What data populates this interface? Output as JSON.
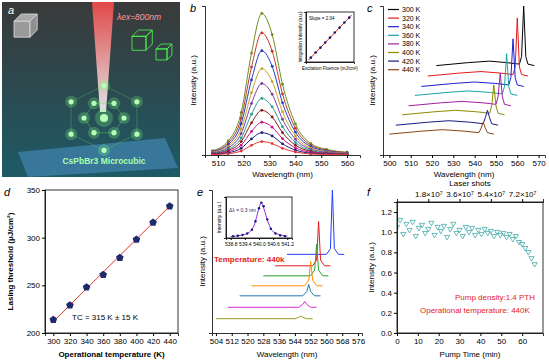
{
  "chart_data": [
    {
      "type": "illustration",
      "panel_label": "a",
      "labels": [
        "λex=800nm",
        "CsPbBr3 Microcubic"
      ]
    },
    {
      "type": "line",
      "panel_label": "b",
      "xlabel": "Wavelength (nm)",
      "ylabel": "Intensity (a.u.)",
      "xlim": [
        505,
        565
      ],
      "xticks": [
        510,
        520,
        530,
        540,
        550,
        560
      ],
      "ylim": [
        0,
        100
      ],
      "tick_labels": "x",
      "x": [
        508,
        514,
        519,
        523,
        527,
        531,
        535,
        540,
        546,
        552,
        560
      ],
      "series": [
        {
          "color": "#6b8e23",
          "marker": "circle",
          "values": [
            2.9,
            9.5,
            28.5,
            68.4,
            95,
            80.8,
            47.5,
            20.9,
            7.6,
            3.8,
            1.9
          ]
        },
        {
          "color": "#c0392b",
          "marker": "circle",
          "values": [
            2.5,
            8.2,
            24.6,
            59,
            82,
            69.7,
            41,
            18,
            6.6,
            3.3,
            1.6
          ]
        },
        {
          "color": "#1f3fbf",
          "marker": "circle",
          "values": [
            2.1,
            7,
            21,
            50.4,
            70,
            59.5,
            35,
            15.4,
            5.6,
            2.8,
            1.4
          ]
        },
        {
          "color": "#c9a227",
          "marker": "circle",
          "values": [
            1.7,
            5.8,
            17.4,
            41.8,
            58,
            49.3,
            29,
            12.8,
            4.6,
            2.3,
            1.2
          ]
        },
        {
          "color": "#7b3fa0",
          "marker": "circle",
          "values": [
            1.4,
            4.8,
            14.4,
            34.6,
            48,
            40.8,
            24,
            10.6,
            3.8,
            1.9,
            1
          ]
        },
        {
          "color": "#2a9d8f",
          "marker": "circle",
          "values": [
            1.1,
            3.8,
            11.4,
            27.4,
            38,
            32.3,
            19,
            8.4,
            3,
            1.5,
            0.8
          ]
        },
        {
          "color": "#8b1a1a",
          "marker": "circle",
          "values": [
            0.9,
            3,
            9,
            21.6,
            30,
            25.5,
            15,
            6.6,
            2.4,
            1.2,
            0.6
          ]
        },
        {
          "color": "#c71585",
          "marker": "circle",
          "values": [
            0.7,
            2.2,
            6.6,
            15.8,
            22,
            18.7,
            11,
            4.8,
            1.8,
            0.9,
            0.4
          ]
        },
        {
          "color": "#1a237e",
          "marker": "circle",
          "values": [
            0.5,
            1.5,
            4.5,
            10.8,
            15,
            12.8,
            7.5,
            3.3,
            1.2,
            0.6,
            0.3
          ]
        },
        {
          "color": "#e53935",
          "marker": "circle",
          "values": [
            0.3,
            0.9,
            2.7,
            6.5,
            9,
            7.7,
            4.5,
            2,
            0.7,
            0.4,
            0.2
          ]
        }
      ],
      "inset": {
        "type": "scatter",
        "xlabel": "Excitation Fluence (mJ/cm²)",
        "ylabel": "Integration Intensity (a.u.)",
        "xlim": [
          0,
          10
        ],
        "ylim": [
          0,
          11.5
        ],
        "tick_labels": false,
        "annotations": [
          {
            "text": "Slope = 2.04",
            "color": "#000000"
          }
        ],
        "series": [
          {
            "type": "line",
            "color": "#d62728",
            "x": [
              0.5,
              9.5
            ],
            "values": [
              0.4,
              10.8
            ]
          },
          {
            "type": "scatter",
            "marker": "circle",
            "color": "#1a1a6e",
            "x": [
              1,
              2,
              3,
              4,
              5,
              6,
              7,
              8,
              9
            ],
            "values": [
              1,
              2.2,
              3.3,
              4.5,
              5.6,
              6.8,
              7.9,
              9.1,
              10.2
            ]
          }
        ]
      }
    },
    {
      "type": "line",
      "panel_label": "c",
      "xlabel": "Wavelength (nm)",
      "ylabel": "Intensity (a.u.)",
      "xlim": [
        497,
        573
      ],
      "xticks": [
        500,
        510,
        520,
        530,
        540,
        550,
        560,
        570
      ],
      "ylim": [
        0,
        100
      ],
      "tick_labels": "x",
      "legend": "top-left",
      "series": [
        {
          "name": "300 K",
          "color": "#000000",
          "x": [
            522,
            537,
            547,
            555,
            561,
            562,
            563,
            564,
            565,
            568
          ],
          "values": [
            60,
            62,
            63,
            62,
            61,
            66,
            100,
            66,
            61,
            60
          ]
        },
        {
          "name": "320 K",
          "color": "#e41a1c",
          "x": [
            518,
            533,
            543,
            552,
            558,
            559,
            560,
            561,
            562,
            565
          ],
          "values": [
            53,
            55,
            56,
            55,
            54,
            59,
            92,
            59,
            54,
            53
          ]
        },
        {
          "name": "340 K",
          "color": "#1f1fd0",
          "x": [
            515,
            530,
            540,
            550,
            556,
            557,
            558,
            559,
            560,
            563
          ],
          "values": [
            46,
            48,
            49,
            48,
            47,
            52,
            78,
            52,
            47,
            46
          ]
        },
        {
          "name": "360 K",
          "color": "#1aa3a3",
          "x": [
            512,
            527,
            537,
            547,
            553,
            554,
            555,
            556,
            557,
            560
          ],
          "values": [
            40,
            42,
            43,
            42,
            41,
            46,
            68,
            46,
            41,
            40
          ]
        },
        {
          "name": "380 K",
          "color": "#a020a0",
          "x": [
            509,
            524,
            534,
            544,
            550,
            551,
            552,
            553,
            554,
            557
          ],
          "values": [
            33,
            35,
            36,
            35,
            34,
            39,
            55,
            39,
            34,
            33
          ]
        },
        {
          "name": "400 K",
          "color": "#8b8b00",
          "x": [
            506,
            521,
            531,
            541,
            547,
            548,
            549,
            550,
            551,
            554
          ],
          "values": [
            27,
            29,
            30,
            29,
            28,
            33,
            47,
            33,
            28,
            27
          ]
        },
        {
          "name": "420 K",
          "color": "#1a1a80",
          "x": [
            503,
            518,
            528,
            538,
            544,
            545,
            546,
            547,
            548,
            551
          ],
          "values": [
            20,
            22,
            23,
            22,
            21,
            25,
            30,
            25,
            21,
            20
          ]
        },
        {
          "name": "440 K",
          "color": "#8b4513",
          "x": [
            500,
            515,
            525,
            535,
            542,
            543,
            544,
            545,
            546,
            549
          ],
          "values": [
            14,
            16,
            17,
            16,
            15,
            18,
            22,
            18,
            15,
            14
          ]
        }
      ]
    },
    {
      "type": "scatter",
      "panel_label": "d",
      "xlabel": "Operational temperature (K)",
      "ylabel": "Lasing threshold (μJ/cm²)",
      "xlim": [
        290,
        450
      ],
      "xticks": [
        300,
        320,
        340,
        360,
        380,
        400,
        420,
        440
      ],
      "ylim": [
        200,
        350
      ],
      "yticks": [
        200,
        250,
        300,
        350
      ],
      "annotations": [
        {
          "text": "TC = 315 K ± 15 K",
          "color": "#000000"
        }
      ],
      "series": [
        {
          "type": "line",
          "color": "#e8312a",
          "x": [
            300,
            440
          ],
          "values": [
            212,
            333
          ]
        },
        {
          "type": "scatter",
          "marker": "pentagon",
          "color": "#1f2a6b",
          "x": [
            300,
            320,
            340,
            360,
            380,
            400,
            420,
            440
          ],
          "values": [
            214,
            229,
            248,
            261,
            279,
            298,
            316,
            333
          ]
        }
      ]
    },
    {
      "type": "line",
      "panel_label": "e",
      "xlabel": "Wavelength (nm)",
      "ylabel": "Intensity (a.u.)",
      "xlim": [
        502,
        578
      ],
      "xticks": [
        504,
        512,
        520,
        528,
        536,
        544,
        552,
        560,
        568,
        576
      ],
      "ylim": [
        0,
        100
      ],
      "tick_labels": "x",
      "annotations": [
        {
          "text": "Temperature: 440k",
          "color": "#e41a1c"
        }
      ],
      "series": [
        {
          "color": "#1f3fff",
          "x": [
            540,
            560,
            562,
            563,
            564,
            566,
            569
          ],
          "values": [
            55,
            55,
            59,
            100,
            59,
            55,
            55
          ]
        },
        {
          "color": "#e41a1c",
          "x": [
            534,
            553,
            555,
            556,
            557,
            559,
            562
          ],
          "values": [
            47,
            47,
            51,
            78,
            51,
            47,
            47
          ]
        },
        {
          "color": "#2ca02c",
          "x": [
            528,
            552,
            554,
            555,
            556,
            558,
            561
          ],
          "values": [
            40,
            40,
            44,
            62,
            44,
            40,
            40
          ]
        },
        {
          "color": "#ff8c00",
          "x": [
            522,
            549,
            551,
            552,
            553,
            555,
            558
          ],
          "values": [
            33,
            33,
            37,
            50,
            37,
            33,
            33
          ]
        },
        {
          "color": "#1f77b4",
          "x": [
            516,
            548,
            550,
            551,
            552,
            554,
            557
          ],
          "values": [
            26,
            26,
            29,
            34,
            29,
            26,
            26
          ]
        },
        {
          "color": "#d62cd6",
          "x": [
            510,
            546,
            548,
            549,
            550,
            552,
            555
          ],
          "values": [
            18,
            18,
            20,
            22,
            20,
            18,
            18
          ]
        },
        {
          "color": "#9a9a20",
          "x": [
            504,
            544,
            546,
            547,
            548,
            550,
            553
          ],
          "values": [
            10,
            10,
            11,
            12,
            11,
            10,
            10
          ]
        }
      ],
      "inset": {
        "type": "scatter",
        "ylabel": "Intensity (a.u.)",
        "xlim": [
          538.6,
          541.4
        ],
        "xticks": [
          538.8,
          539.4,
          {
            "value": 540,
            "label": "540.0"
          },
          540.6,
          541.2
        ],
        "ylim": [
          0,
          110
        ],
        "tick_labels": "x",
        "annotations": [
          {
            "text": "Δλ = 0.3 nm",
            "color": "#1a1a6e"
          }
        ],
        "series": [
          {
            "type": "line",
            "color": "#8a2be2",
            "x": [
              538.8,
              539.2,
              539.6,
              539.8,
              540.0,
              540.1,
              540.2,
              540.4,
              540.6,
              541.0,
              541.2
            ],
            "values": [
              4,
              7,
              16,
              35,
              80,
              95,
              80,
              40,
              17,
              7,
              5
            ]
          },
          {
            "type": "scatter",
            "marker": "circle",
            "color": "#1a1a6e",
            "x": [
              538.9,
              539.1,
              539.3,
              539.5,
              539.7,
              539.85,
              540.0,
              540.1,
              540.2,
              540.35,
              540.5,
              540.7,
              540.9,
              541.1
            ],
            "values": [
              5,
              6,
              8,
              12,
              22,
              45,
              80,
              95,
              85,
              50,
              25,
              12,
              7,
              5
            ]
          }
        ]
      }
    },
    {
      "type": "scatter",
      "panel_label": "f",
      "xlabel": "Pump Time (min)",
      "ylabel": "Intensity (a.u.)",
      "x2label": "Laser shots",
      "xlim": [
        0,
        70
      ],
      "xticks": [
        0,
        10,
        20,
        30,
        40,
        50,
        60
      ],
      "x2lim": [
        0,
        84000000
      ],
      "x2ticks": [
        {
          "value": 18000000,
          "label": "1.8×10⁷"
        },
        {
          "value": 36000000,
          "label": "3.6×10⁷"
        },
        {
          "value": 54000000,
          "label": "5.4×10⁷"
        },
        {
          "value": 72000000,
          "label": "7.2×10⁷"
        }
      ],
      "ylim": [
        0,
        1.3
      ],
      "yticks": [
        {
          "value": 0,
          "label": "0.0"
        },
        0.2,
        0.4,
        0.6,
        0.8,
        {
          "value": 1,
          "label": "1.0"
        },
        1.2
      ],
      "annotations": [
        {
          "text": "Pump density:1.4 PTH",
          "color": "#e41a1c"
        },
        {
          "text": "Operational temperature: 440K",
          "color": "#e41a1c"
        }
      ],
      "series": [
        {
          "type": "scatter",
          "marker": "triangle-down",
          "color": "#2a9d9d",
          "x": [
            0,
            1.5,
            3,
            4.5,
            6,
            7.5,
            9,
            10.5,
            12,
            13.5,
            15,
            16.5,
            18,
            19.5,
            21,
            22.5,
            24,
            25.5,
            27,
            28.5,
            30,
            31.5,
            33,
            34.5,
            36,
            37.5,
            39,
            40.5,
            42,
            43.5,
            45,
            46.5,
            48,
            49.5,
            51,
            52.5,
            54,
            55.5,
            57,
            58.5,
            60,
            61.5,
            63,
            64.5,
            66
          ],
          "values": [
            1.05,
            1.12,
            0.98,
            1.08,
            1.02,
            1.1,
            0.96,
            1.04,
            1.07,
            0.99,
            1.03,
            1.09,
            0.97,
            1.05,
            1.01,
            1.06,
            0.95,
            1.03,
            1.08,
            0.99,
            1.02,
            0.96,
            1.05,
            1.0,
            1.04,
            0.97,
            1.02,
            0.98,
            1.03,
            0.99,
            1.01,
            0.96,
            1.0,
            0.97,
            0.99,
            0.95,
            0.98,
            0.93,
            0.96,
            0.9,
            0.88,
            0.84,
            0.8,
            0.74,
            0.68
          ]
        }
      ]
    }
  ]
}
